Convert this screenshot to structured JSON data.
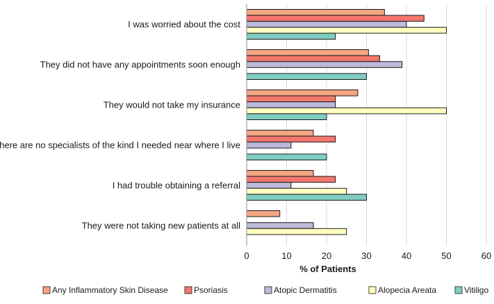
{
  "chart_data": {
    "type": "bar",
    "orientation": "horizontal",
    "title": "",
    "xlabel": "% of Patients",
    "ylabel": "",
    "xlim": [
      0,
      60
    ],
    "xticks": [
      0,
      10,
      20,
      30,
      40,
      50,
      60
    ],
    "grid": true,
    "legend_position": "bottom",
    "categories": [
      "I was worried about the cost",
      "They did not have any appointments soon enough",
      "They would not take my insurance",
      "There are no specialists of the kind I needed near where I live",
      "I had trouble obtaining a referral",
      "They were not taking new patients at all"
    ],
    "series": [
      {
        "name": "Any Inflammatory Skin Disease",
        "color": "#F4A582",
        "values": [
          34.5,
          30.5,
          27.8,
          16.7,
          16.7,
          8.3
        ]
      },
      {
        "name": "Psoriasis",
        "color": "#F4776E",
        "values": [
          44.4,
          33.3,
          22.2,
          22.2,
          22.2,
          0
        ]
      },
      {
        "name": "Atopic Dermatitis",
        "color": "#BCB9DA",
        "values": [
          40.0,
          38.9,
          22.2,
          11.1,
          11.1,
          16.7
        ]
      },
      {
        "name": "Alopecia Areata",
        "color": "#FFFFC0",
        "values": [
          50.0,
          0,
          50.0,
          0,
          25.0,
          25.0
        ]
      },
      {
        "name": "Vitiligo",
        "color": "#80CDC1",
        "values": [
          22.2,
          30.0,
          20.0,
          20.0,
          30.0,
          0
        ]
      }
    ]
  }
}
